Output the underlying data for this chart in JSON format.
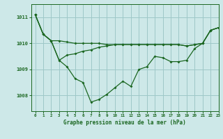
{
  "title": "Graphe pression niveau de la mer (hPa)",
  "background_color": "#cde8e8",
  "grid_color": "#9ec8c8",
  "line_color": "#1a6620",
  "hours": [
    0,
    1,
    2,
    3,
    4,
    5,
    6,
    7,
    8,
    9,
    10,
    11,
    12,
    13,
    14,
    15,
    16,
    17,
    18,
    19,
    20,
    21,
    22,
    23
  ],
  "line1": [
    1011.1,
    1010.35,
    1010.1,
    1010.1,
    1010.05,
    1010.0,
    1010.0,
    1010.0,
    1010.0,
    1009.95,
    1009.95,
    1009.95,
    1009.95,
    1009.95,
    1009.95,
    1009.95,
    1009.95,
    1009.95,
    1009.95,
    1009.9,
    1009.95,
    1010.0,
    1010.5,
    1010.6
  ],
  "line2": [
    1011.1,
    1010.35,
    1010.1,
    1009.35,
    1009.1,
    1008.65,
    1008.5,
    1007.75,
    1007.85,
    1008.05,
    1008.3,
    1008.55,
    1008.35,
    1009.0,
    1009.1,
    1009.5,
    1009.45,
    1009.3,
    1009.3,
    1009.35,
    1009.8,
    1010.0,
    1010.5,
    1010.6
  ],
  "line3": [
    1011.1,
    1010.35,
    1010.1,
    1009.35,
    1009.55,
    1009.6,
    1009.7,
    1009.75,
    1009.85,
    1009.9,
    1009.95,
    1009.95,
    1009.95,
    1009.95,
    1009.95,
    1009.95,
    1009.95,
    1009.95,
    1009.95,
    1009.9,
    1009.95,
    1010.0,
    1010.5,
    1010.6
  ],
  "ylim": [
    1007.4,
    1011.5
  ],
  "yticks": [
    1008,
    1009,
    1010,
    1011
  ],
  "xlim": [
    -0.5,
    23
  ]
}
